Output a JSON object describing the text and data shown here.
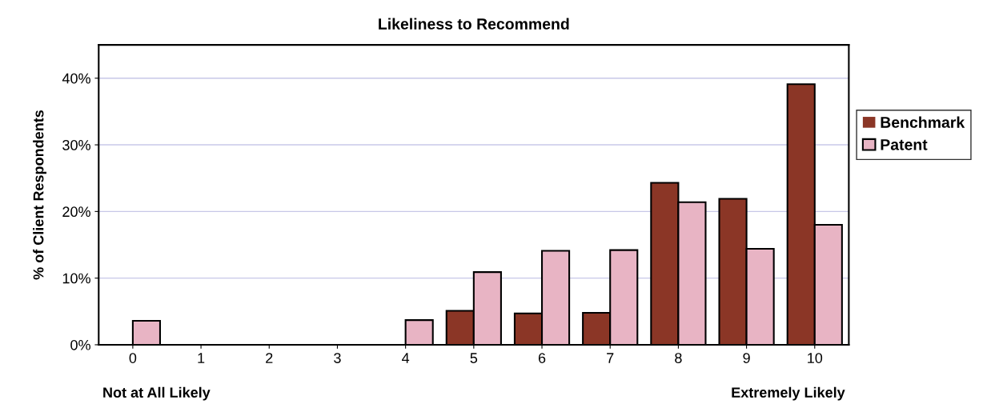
{
  "chart_data": {
    "type": "bar",
    "title": "Likeliness to Recommend",
    "ylabel": "% of Client Respondents",
    "categories": [
      "0",
      "1",
      "2",
      "3",
      "4",
      "5",
      "6",
      "7",
      "8",
      "9",
      "10"
    ],
    "series": [
      {
        "name": "Benchmark",
        "color": "#8b3626",
        "values": [
          0,
          0,
          0,
          0,
          0,
          5.1,
          4.7,
          4.8,
          24.3,
          21.9,
          39.1
        ]
      },
      {
        "name": "Patent",
        "color": "#e8b4c4",
        "values": [
          3.6,
          0,
          0,
          0,
          3.7,
          10.9,
          14.1,
          14.2,
          21.4,
          14.4,
          18.0
        ]
      }
    ],
    "ylim": [
      0,
      45
    ],
    "yticks": [
      {
        "value": 0,
        "label": "0%"
      },
      {
        "value": 10,
        "label": "10%"
      },
      {
        "value": 20,
        "label": "20%"
      },
      {
        "value": 30,
        "label": "30%"
      },
      {
        "value": 40,
        "label": "40%"
      }
    ],
    "grid": "y",
    "legend": "right",
    "annotations": [
      "Not at All Likely",
      "Extremely Likely"
    ]
  }
}
